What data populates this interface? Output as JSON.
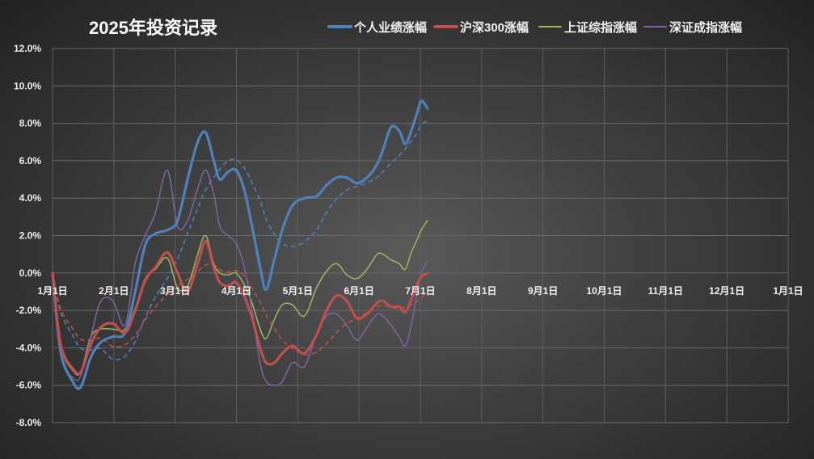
{
  "chart_data": {
    "type": "line",
    "title": "2025年投资记录",
    "xlabel": "",
    "ylabel": "",
    "x_tick_labels": [
      "1月1日",
      "2月1日",
      "3月1日",
      "4月1日",
      "5月1日",
      "6月1日",
      "7月1日",
      "8月1日",
      "9月1日",
      "10月1日",
      "11月1日",
      "12月1日",
      "1月1日"
    ],
    "y_tick_labels": [
      "12.0%",
      "10.0%",
      "8.0%",
      "6.0%",
      "4.0%",
      "2.0%",
      "0.0%",
      "-2.0%",
      "-4.0%",
      "-6.0%",
      "-8.0%"
    ],
    "ylim": [
      -8,
      12
    ],
    "xlim_days": [
      0,
      365
    ],
    "grid": true,
    "legend_position": "top",
    "series": [
      {
        "name": "个人业绩涨幅",
        "color": "#4f81bd",
        "width": 3.2,
        "trendline": true,
        "points": [
          [
            0,
            0
          ],
          [
            4,
            -4.2
          ],
          [
            10,
            -5.8
          ],
          [
            14,
            -6.1
          ],
          [
            19,
            -4.5
          ],
          [
            24,
            -3.7
          ],
          [
            30,
            -3.4
          ],
          [
            36,
            -3.2
          ],
          [
            41,
            -1
          ],
          [
            46,
            1.5
          ],
          [
            51,
            2.1
          ],
          [
            57,
            2.3
          ],
          [
            62,
            2.8
          ],
          [
            67,
            5
          ],
          [
            72,
            7
          ],
          [
            76,
            7.5
          ],
          [
            80,
            6
          ],
          [
            83,
            5
          ],
          [
            87,
            5.4
          ],
          [
            91,
            5.5
          ],
          [
            95,
            4.5
          ],
          [
            99,
            2.5
          ],
          [
            103,
            0.3
          ],
          [
            106,
            -0.9
          ],
          [
            110,
            0.7
          ],
          [
            114,
            2.3
          ],
          [
            119,
            3.6
          ],
          [
            125,
            4
          ],
          [
            131,
            4.1
          ],
          [
            136,
            4.7
          ],
          [
            141,
            5.1
          ],
          [
            146,
            5.1
          ],
          [
            151,
            4.8
          ],
          [
            156,
            5.1
          ],
          [
            161,
            5.8
          ],
          [
            164,
            6.6
          ],
          [
            168,
            7.8
          ],
          [
            172,
            7.6
          ],
          [
            175,
            6.9
          ],
          [
            178,
            7.6
          ],
          [
            181,
            8.6
          ],
          [
            183,
            9.2
          ],
          [
            186,
            8.8
          ]
        ]
      },
      {
        "name": "沪深300涨幅",
        "color": "#c0504d",
        "width": 3.2,
        "trendline": true,
        "points": [
          [
            0,
            0
          ],
          [
            4,
            -3.8
          ],
          [
            10,
            -5.1
          ],
          [
            14,
            -5.3
          ],
          [
            19,
            -3.8
          ],
          [
            24,
            -2.9
          ],
          [
            30,
            -2.7
          ],
          [
            36,
            -3.2
          ],
          [
            41,
            -2
          ],
          [
            46,
            -0.4
          ],
          [
            51,
            0.3
          ],
          [
            57,
            1.1
          ],
          [
            62,
            0
          ],
          [
            67,
            -1
          ],
          [
            72,
            0.5
          ],
          [
            76,
            1.7
          ],
          [
            80,
            0.3
          ],
          [
            83,
            -0.5
          ],
          [
            87,
            -0.7
          ],
          [
            91,
            -0.5
          ],
          [
            95,
            -1.2
          ],
          [
            99,
            -2.4
          ],
          [
            103,
            -4
          ],
          [
            106,
            -4.8
          ],
          [
            110,
            -4.8
          ],
          [
            114,
            -4.3
          ],
          [
            119,
            -3.9
          ],
          [
            125,
            -4.3
          ],
          [
            131,
            -3.3
          ],
          [
            136,
            -2
          ],
          [
            141,
            -1.2
          ],
          [
            146,
            -1.5
          ],
          [
            151,
            -2.4
          ],
          [
            156,
            -2.2
          ],
          [
            161,
            -1.6
          ],
          [
            164,
            -1.5
          ],
          [
            168,
            -1.8
          ],
          [
            172,
            -1.8
          ],
          [
            175,
            -2.1
          ],
          [
            178,
            -1.4
          ],
          [
            181,
            -0.6
          ],
          [
            183,
            -0.2
          ],
          [
            186,
            0
          ]
        ]
      },
      {
        "name": "上证综指涨幅",
        "color": "#9bbb59",
        "width": 1.5,
        "trendline": false,
        "points": [
          [
            0,
            0
          ],
          [
            4,
            -3.9
          ],
          [
            10,
            -5.2
          ],
          [
            14,
            -5.3
          ],
          [
            19,
            -3.4
          ],
          [
            24,
            -3
          ],
          [
            30,
            -3
          ],
          [
            36,
            -3
          ],
          [
            41,
            -1.9
          ],
          [
            46,
            -0.3
          ],
          [
            51,
            0.2
          ],
          [
            57,
            0.8
          ],
          [
            62,
            -0.8
          ],
          [
            67,
            -0.7
          ],
          [
            72,
            1
          ],
          [
            76,
            2
          ],
          [
            80,
            0.5
          ],
          [
            83,
            0
          ],
          [
            87,
            -0.1
          ],
          [
            91,
            0
          ],
          [
            95,
            -0.6
          ],
          [
            99,
            -1.6
          ],
          [
            103,
            -3
          ],
          [
            106,
            -3.5
          ],
          [
            110,
            -2.5
          ],
          [
            114,
            -1.7
          ],
          [
            119,
            -1.7
          ],
          [
            125,
            -2.3
          ],
          [
            131,
            -0.8
          ],
          [
            136,
            0.1
          ],
          [
            141,
            0.5
          ],
          [
            146,
            -0.1
          ],
          [
            151,
            -0.3
          ],
          [
            156,
            0.2
          ],
          [
            161,
            1
          ],
          [
            164,
            1
          ],
          [
            168,
            0.7
          ],
          [
            172,
            0.5
          ],
          [
            175,
            0.2
          ],
          [
            178,
            1.1
          ],
          [
            181,
            1.8
          ],
          [
            183,
            2.3
          ],
          [
            186,
            2.8
          ]
        ]
      },
      {
        "name": "深证成指涨幅",
        "color": "#8064a2",
        "width": 1.5,
        "trendline": false,
        "points": [
          [
            0,
            0
          ],
          [
            4,
            -4.4
          ],
          [
            10,
            -5.6
          ],
          [
            14,
            -5.5
          ],
          [
            19,
            -3.4
          ],
          [
            24,
            -1.5
          ],
          [
            30,
            -1.5
          ],
          [
            36,
            -2.8
          ],
          [
            41,
            0.5
          ],
          [
            46,
            2
          ],
          [
            51,
            3.2
          ],
          [
            57,
            5.5
          ],
          [
            62,
            2.5
          ],
          [
            67,
            2.8
          ],
          [
            72,
            4.5
          ],
          [
            76,
            5.5
          ],
          [
            80,
            4.2
          ],
          [
            83,
            2.5
          ],
          [
            87,
            2
          ],
          [
            91,
            1.6
          ],
          [
            95,
            0.4
          ],
          [
            99,
            -2
          ],
          [
            103,
            -4.8
          ],
          [
            106,
            -5.8
          ],
          [
            110,
            -6
          ],
          [
            114,
            -5.8
          ],
          [
            119,
            -4.8
          ],
          [
            125,
            -5
          ],
          [
            131,
            -3.3
          ],
          [
            136,
            -2.3
          ],
          [
            141,
            -2.2
          ],
          [
            146,
            -2.8
          ],
          [
            151,
            -3.6
          ],
          [
            156,
            -2.9
          ],
          [
            161,
            -2.2
          ],
          [
            164,
            -2.3
          ],
          [
            168,
            -2.8
          ],
          [
            172,
            -3.4
          ],
          [
            175,
            -3.9
          ],
          [
            178,
            -2.8
          ],
          [
            181,
            -1
          ],
          [
            183,
            0
          ],
          [
            186,
            0.6
          ]
        ]
      }
    ]
  }
}
